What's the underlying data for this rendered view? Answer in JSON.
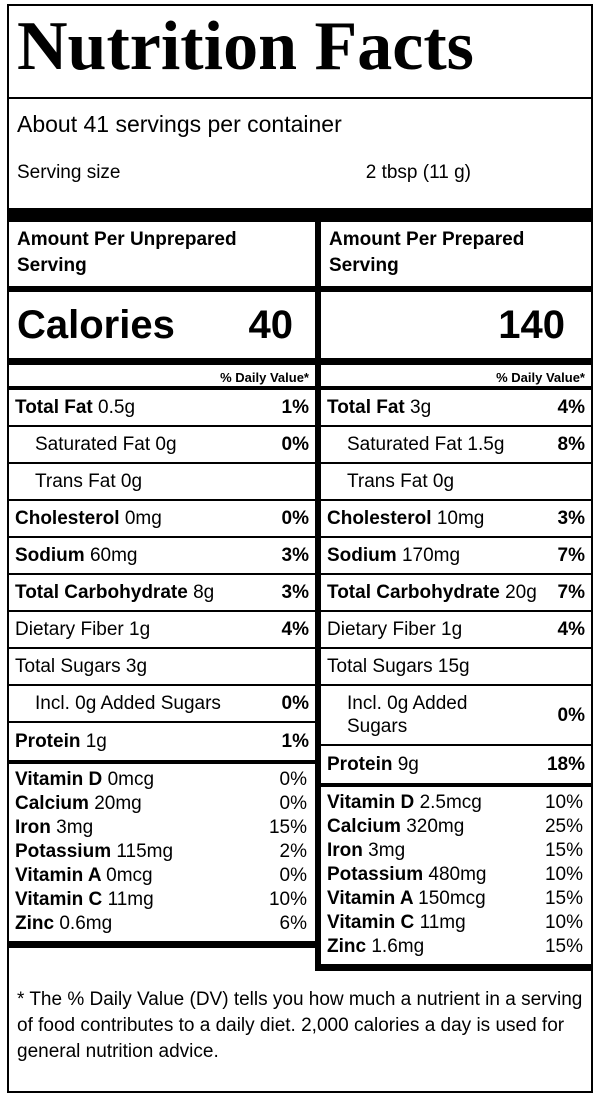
{
  "label": {
    "title": "Nutrition Facts",
    "servings_per_container": "About 41 servings per container",
    "serving_size": {
      "label": "Serving size",
      "value": "2 tbsp (11 g)"
    },
    "calories_word": "Calories",
    "daily_value_header": "% Daily Value*",
    "footnote": "* The % Daily Value (DV) tells you how much a nutrient in a serving of food contributes to a daily diet. 2,000 calories a day is used for general nutrition advice.",
    "colors": {
      "ink": "#000000",
      "paper": "#ffffff"
    },
    "columns": [
      {
        "header": "Amount Per Unprepared Serving",
        "calories": "40",
        "nutrients": [
          {
            "name": "Total Fat",
            "amount": "0.5g",
            "pct": "1%"
          },
          {
            "name": "Saturated Fat",
            "amount": "0g",
            "pct": "0%"
          },
          {
            "name": "Trans Fat",
            "amount": "0g",
            "pct": ""
          },
          {
            "name": "Cholesterol",
            "amount": "0mg",
            "pct": "0%"
          },
          {
            "name": "Sodium",
            "amount": "60mg",
            "pct": "3%"
          },
          {
            "name": "Total Carbohydrate",
            "amount": "8g",
            "pct": "3%"
          },
          {
            "name": "Dietary Fiber",
            "amount": "1g",
            "pct": "4%"
          },
          {
            "name": "Total Sugars",
            "amount": "3g",
            "pct": ""
          },
          {
            "name": "Incl. 0g Added Sugars",
            "amount": "",
            "pct": "0%"
          },
          {
            "name": "Protein",
            "amount": "1g",
            "pct": "1%"
          }
        ],
        "micronutrients": [
          {
            "name": "Vitamin D",
            "amount": "0mcg",
            "pct": "0%"
          },
          {
            "name": "Calcium",
            "amount": "20mg",
            "pct": "0%"
          },
          {
            "name": "Iron",
            "amount": "3mg",
            "pct": "15%"
          },
          {
            "name": "Potassium",
            "amount": "115mg",
            "pct": "2%"
          },
          {
            "name": "Vitamin A",
            "amount": "0mcg",
            "pct": "0%"
          },
          {
            "name": "Vitamin C",
            "amount": "11mg",
            "pct": "10%"
          },
          {
            "name": "Zinc",
            "amount": "0.6mg",
            "pct": "6%"
          }
        ]
      },
      {
        "header": "Amount Per Prepared Serving",
        "calories": "140",
        "nutrients": [
          {
            "name": "Total Fat",
            "amount": "3g",
            "pct": "4%"
          },
          {
            "name": "Saturated Fat",
            "amount": "1.5g",
            "pct": "8%"
          },
          {
            "name": "Trans Fat",
            "amount": "0g",
            "pct": ""
          },
          {
            "name": "Cholesterol",
            "amount": "10mg",
            "pct": "3%"
          },
          {
            "name": "Sodium",
            "amount": "170mg",
            "pct": "7%"
          },
          {
            "name": "Total Carbohydrate",
            "amount": "20g",
            "pct": "7%"
          },
          {
            "name": "Dietary Fiber",
            "amount": "1g",
            "pct": "4%"
          },
          {
            "name": "Total Sugars",
            "amount": "15g",
            "pct": ""
          },
          {
            "name": "Incl. 0g Added Sugars",
            "amount": "",
            "pct": "0%"
          },
          {
            "name": "Protein",
            "amount": "9g",
            "pct": "18%"
          }
        ],
        "micronutrients": [
          {
            "name": "Vitamin D",
            "amount": "2.5mcg",
            "pct": "10%"
          },
          {
            "name": "Calcium",
            "amount": "320mg",
            "pct": "25%"
          },
          {
            "name": "Iron",
            "amount": "3mg",
            "pct": "15%"
          },
          {
            "name": "Potassium",
            "amount": "480mg",
            "pct": "10%"
          },
          {
            "name": "Vitamin A",
            "amount": "150mcg",
            "pct": "15%"
          },
          {
            "name": "Vitamin C",
            "amount": "11mg",
            "pct": "10%"
          },
          {
            "name": "Zinc",
            "amount": "1.6mg",
            "pct": "15%"
          }
        ]
      }
    ]
  }
}
